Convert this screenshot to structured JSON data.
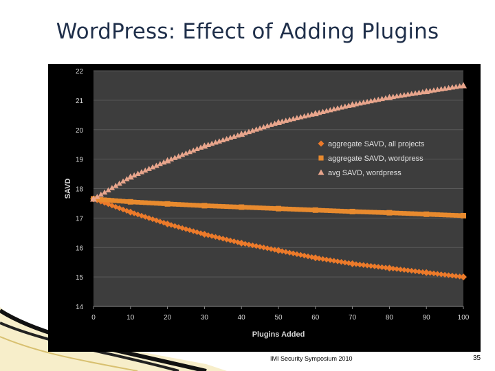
{
  "slide": {
    "title": "WordPress: Effect of Adding Plugins",
    "footer": "IMI Security Symposium 2010",
    "page_number": "35"
  },
  "colors": {
    "plot_background": "#3d3d3d",
    "frame_background": "#000000",
    "series_colors": [
      "#ec7a2a",
      "#e88a2e",
      "#e8a58c"
    ],
    "grid": "#5a5a5a",
    "tick_text": "#d9d9d9"
  },
  "chart_data": {
    "type": "line",
    "title": "",
    "xlabel": "Plugins Added",
    "ylabel": "SAVD",
    "xlim": [
      0,
      100
    ],
    "ylim": [
      14,
      22
    ],
    "x_ticks": [
      0,
      10,
      20,
      30,
      40,
      50,
      60,
      70,
      80,
      90,
      100
    ],
    "y_ticks": [
      14,
      15,
      16,
      17,
      18,
      19,
      20,
      21,
      22
    ],
    "grid": true,
    "legend_position": "right-middle",
    "series": [
      {
        "name": "aggregate SAVD, all projects",
        "marker": "diamond",
        "x": [
          0,
          10,
          20,
          30,
          40,
          50,
          60,
          70,
          80,
          90,
          100
        ],
        "values": [
          17.65,
          17.2,
          16.8,
          16.45,
          16.15,
          15.9,
          15.65,
          15.45,
          15.3,
          15.15,
          15.0
        ]
      },
      {
        "name": "aggregate SAVD, wordpress",
        "marker": "square",
        "x": [
          0,
          10,
          20,
          30,
          40,
          50,
          60,
          70,
          80,
          90,
          100
        ],
        "values": [
          17.65,
          17.55,
          17.48,
          17.42,
          17.37,
          17.32,
          17.27,
          17.22,
          17.18,
          17.13,
          17.08
        ]
      },
      {
        "name": "avg SAVD, wordpress",
        "marker": "triangle",
        "x": [
          0,
          10,
          20,
          30,
          40,
          50,
          60,
          70,
          80,
          90,
          100
        ],
        "values": [
          17.65,
          18.4,
          18.95,
          19.45,
          19.85,
          20.25,
          20.55,
          20.85,
          21.1,
          21.3,
          21.5
        ]
      }
    ]
  }
}
